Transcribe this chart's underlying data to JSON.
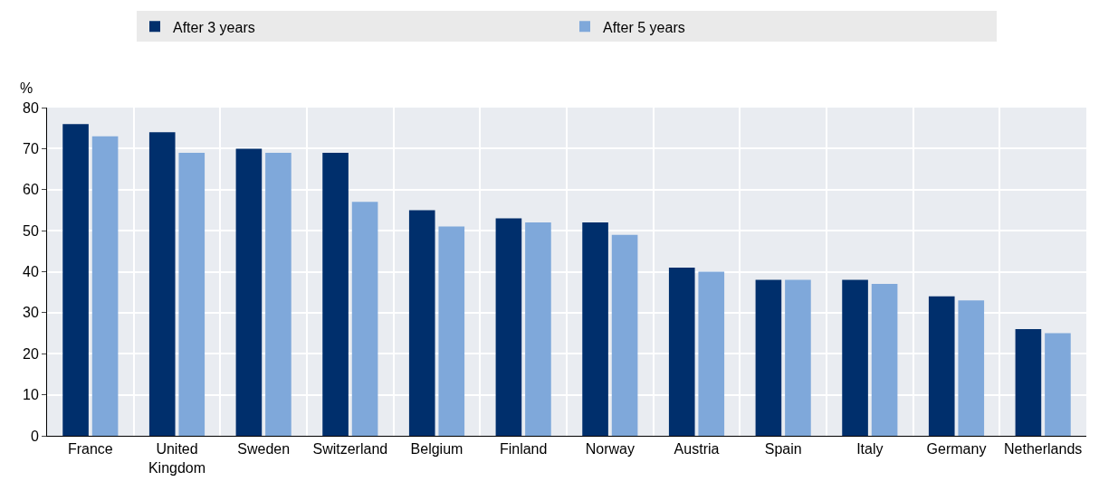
{
  "chart_data": {
    "type": "bar",
    "ylabel": "%",
    "categories": [
      "France",
      "United Kingdom",
      "Sweden",
      "Switzerland",
      "Belgium",
      "Finland",
      "Norway",
      "Austria",
      "Spain",
      "Italy",
      "Germany",
      "Netherlands"
    ],
    "series": [
      {
        "name": "After 3 years",
        "color": "#002f6c",
        "values": [
          76,
          74,
          70,
          69,
          55,
          53,
          52,
          41,
          38,
          38,
          34,
          26
        ]
      },
      {
        "name": "After 5 years",
        "color": "#7fa8da",
        "values": [
          73,
          69,
          69,
          57,
          51,
          52,
          49,
          40,
          38,
          37,
          33,
          25
        ]
      }
    ],
    "ylim": [
      0,
      80
    ],
    "yticks": [
      0,
      10,
      20,
      30,
      40,
      50,
      60,
      70,
      80
    ],
    "grid": true,
    "legend": "top"
  }
}
